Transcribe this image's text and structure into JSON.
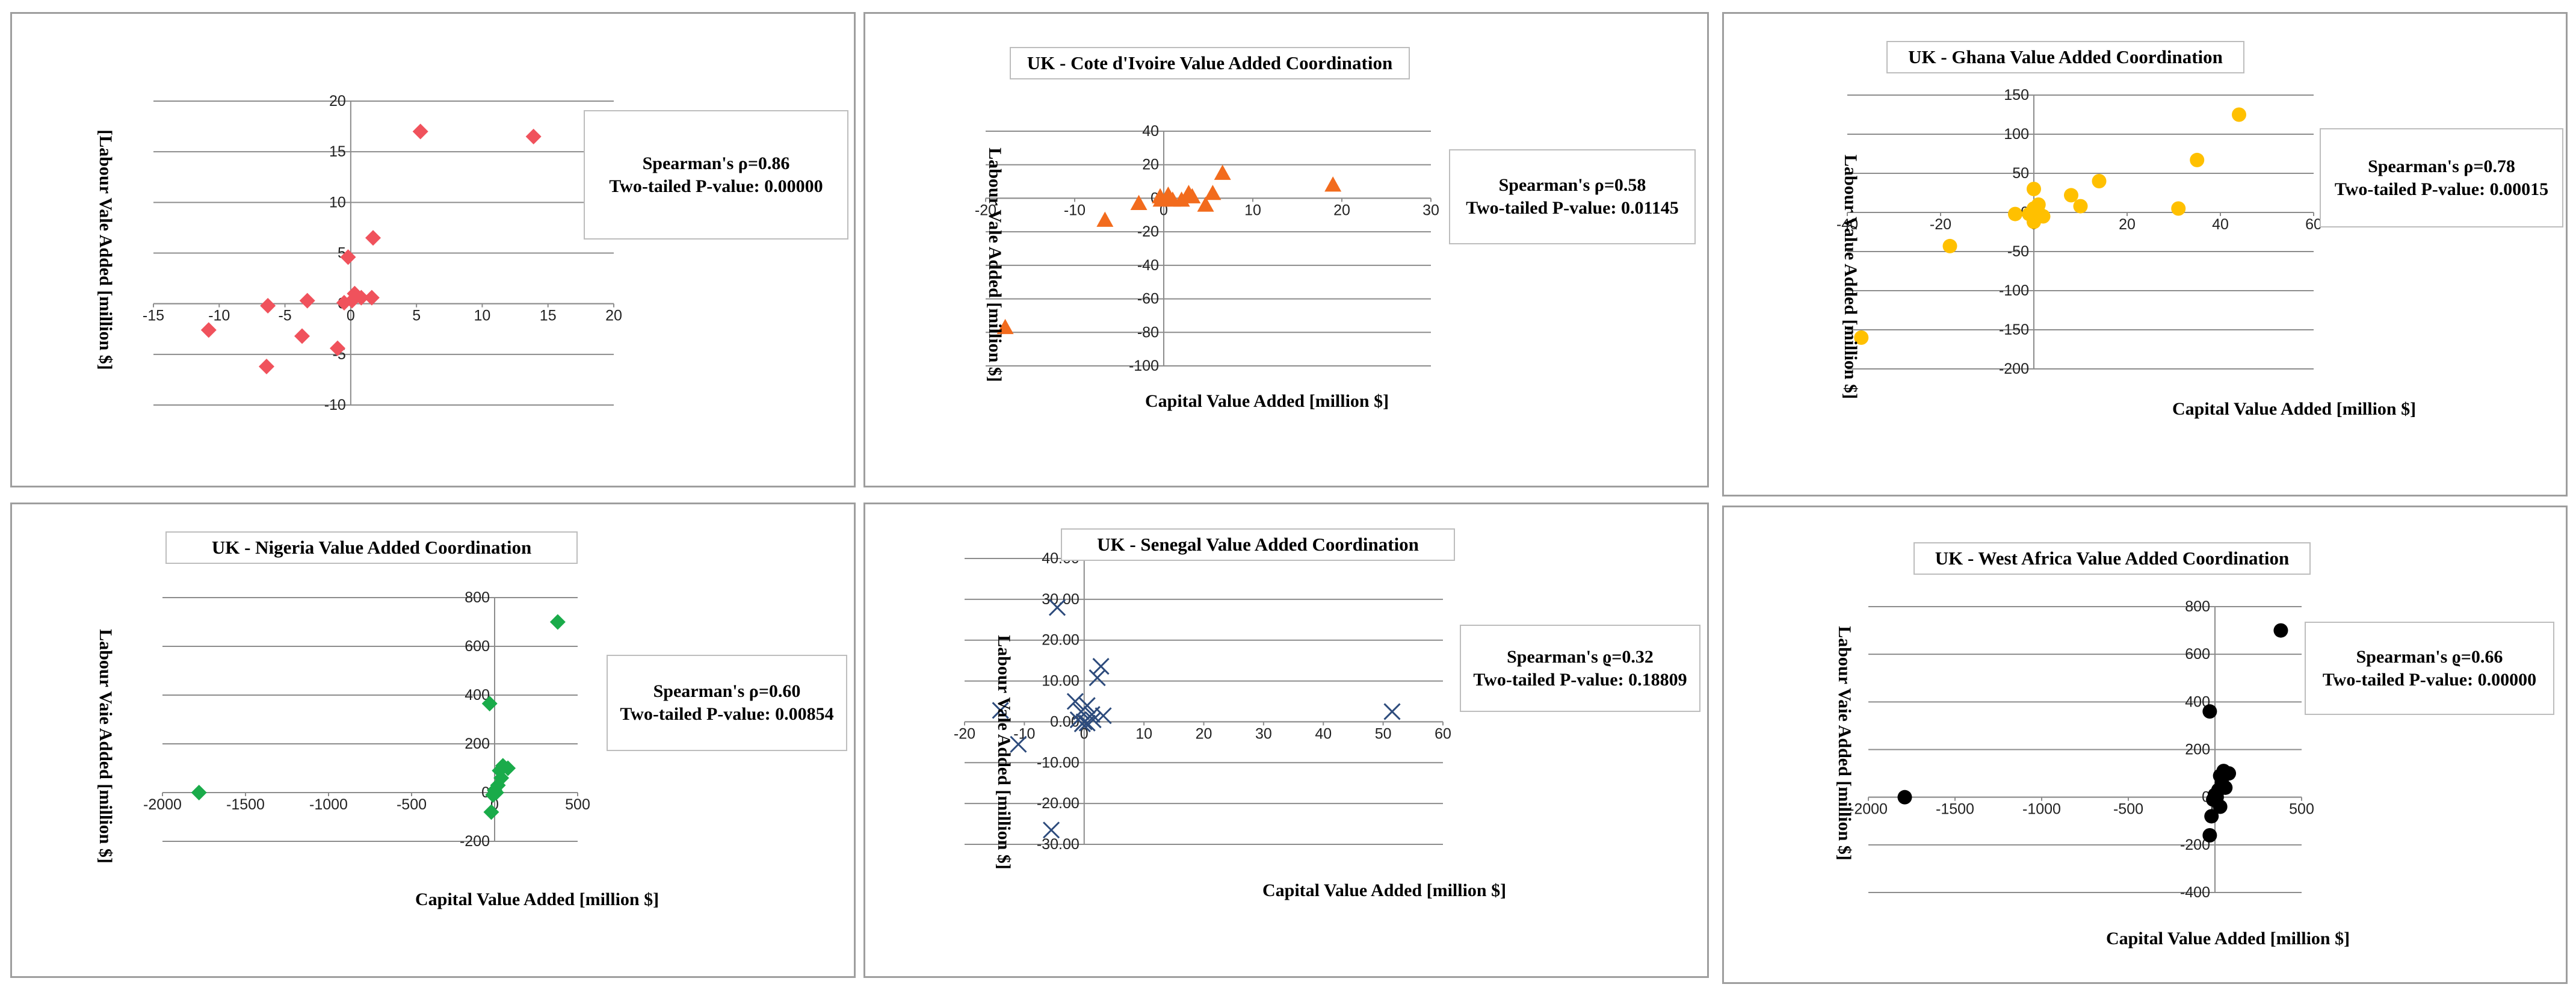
{
  "chart_data": [
    {
      "type": "scatter",
      "title": "",
      "xlabel": "",
      "ylabel": "[Labour Vale Added [million $]",
      "xlim": [
        -15,
        20
      ],
      "ylim": [
        -10,
        20
      ],
      "xticks": [
        -15,
        -10,
        -5,
        0,
        5,
        10,
        15,
        20
      ],
      "yticks": [
        -10,
        -5,
        0,
        5,
        10,
        15,
        20
      ],
      "xtick_labels": [
        "-15",
        "-10",
        "-5",
        "0",
        "5",
        "10",
        "15",
        "20"
      ],
      "ytick_labels": [
        "-10",
        "-5",
        "0",
        "5",
        "10",
        "15",
        "20"
      ],
      "marker": "diamond",
      "color": "#f0525c",
      "stats": {
        "spearman": "Spearman's ρ=0.86",
        "pvalue": "Two-tailed P-value:  0.00000"
      },
      "points": [
        [
          5.3,
          17.0
        ],
        [
          13.9,
          16.5
        ],
        [
          1.7,
          6.5
        ],
        [
          -0.2,
          4.6
        ],
        [
          0.3,
          1.0
        ],
        [
          0.8,
          0.6
        ],
        [
          1.6,
          0.6
        ],
        [
          -0.5,
          0.1
        ],
        [
          0.1,
          0.3
        ],
        [
          -3.3,
          0.3
        ],
        [
          -6.3,
          -0.2
        ],
        [
          -10.8,
          -2.6
        ],
        [
          -3.7,
          -3.2
        ],
        [
          -1.0,
          -4.4
        ],
        [
          -6.4,
          -6.2
        ]
      ]
    },
    {
      "type": "scatter",
      "title": "UK - Cote d'Ivoire Value Added Coordination",
      "xlabel": "Capital Value Added [million $]",
      "ylabel": "Labour Vale Added [million $]",
      "xlim": [
        -20,
        30
      ],
      "ylim": [
        -100,
        40
      ],
      "xticks": [
        -20,
        -10,
        0,
        10,
        20,
        30
      ],
      "yticks": [
        -100,
        -80,
        -60,
        -40,
        -20,
        0,
        20,
        40
      ],
      "xtick_labels": [
        "-20",
        "-10",
        "0",
        "10",
        "20",
        "30"
      ],
      "ytick_labels": [
        "-100",
        "-80",
        "-60",
        "-40",
        "-20",
        "0",
        "20",
        "40"
      ],
      "marker": "triangle",
      "color": "#f26b1d",
      "stats": {
        "spearman": "Spearman's ρ=0.58",
        "pvalue": "Two-tailed P-value:  0.01145"
      },
      "points": [
        [
          -17.8,
          -77
        ],
        [
          -6.6,
          -13
        ],
        [
          -2.8,
          -3
        ],
        [
          -0.4,
          1
        ],
        [
          0.3,
          0
        ],
        [
          1.0,
          -1
        ],
        [
          2.0,
          -1
        ],
        [
          3.2,
          1
        ],
        [
          0.5,
          2
        ],
        [
          -0.3,
          -1
        ],
        [
          2.8,
          3
        ],
        [
          5.5,
          3
        ],
        [
          6.6,
          15
        ],
        [
          4.7,
          -4
        ],
        [
          19.0,
          8
        ]
      ]
    },
    {
      "type": "scatter",
      "title": "UK - Ghana Value Added Coordination",
      "xlabel": "Capital Value Added [million $]",
      "ylabel": "Labour Value Added [million $]",
      "xlim": [
        -40,
        60
      ],
      "ylim": [
        -200,
        150
      ],
      "xticks": [
        -40,
        -20,
        0,
        20,
        40,
        60
      ],
      "yticks": [
        -200,
        -150,
        -100,
        -50,
        0,
        50,
        100,
        150
      ],
      "xtick_labels": [
        "-40",
        "-20",
        "0",
        "20",
        "40",
        "60"
      ],
      "ytick_labels": [
        "-200",
        "-150",
        "-100",
        "-50",
        "0",
        "50",
        "100",
        "150"
      ],
      "marker": "circle",
      "color": "#ffc000",
      "stats": {
        "spearman": "Spearman's ρ=0.78",
        "pvalue": "Two-tailed P-value:  0.00015"
      },
      "points": [
        [
          44,
          125
        ],
        [
          35,
          67
        ],
        [
          14,
          40
        ],
        [
          8,
          22
        ],
        [
          10,
          8
        ],
        [
          31,
          5
        ],
        [
          0,
          30
        ],
        [
          0,
          5
        ],
        [
          1,
          0
        ],
        [
          2,
          -5
        ],
        [
          0,
          -12
        ],
        [
          -1,
          -2
        ],
        [
          -4,
          -2
        ],
        [
          1,
          10
        ],
        [
          -18,
          -43
        ],
        [
          -37,
          -160
        ]
      ]
    },
    {
      "type": "scatter",
      "title": "UK - Nigeria Value Added Coordination",
      "xlabel": "Capital Value Added [million $]",
      "ylabel": "Labour Vaie Added [million $]",
      "xlim": [
        -2000,
        500
      ],
      "ylim": [
        -200,
        800
      ],
      "xticks": [
        -2000,
        -1500,
        -1000,
        -500,
        0,
        500
      ],
      "yticks": [
        -200,
        0,
        200,
        400,
        600,
        800
      ],
      "xtick_labels": [
        "-2000",
        "-1500",
        "-1000",
        "-500",
        "0",
        "500"
      ],
      "ytick_labels": [
        "-200",
        "0",
        "200",
        "400",
        "600",
        "800"
      ],
      "marker": "diamond",
      "color": "#1aab4a",
      "stats": {
        "spearman": "Spearman's ρ=0.60",
        "pvalue": "Two-tailed P-value:  0.00854"
      },
      "points": [
        [
          380,
          700
        ],
        [
          -30,
          365
        ],
        [
          50,
          110
        ],
        [
          80,
          100
        ],
        [
          30,
          90
        ],
        [
          40,
          60
        ],
        [
          20,
          30
        ],
        [
          0,
          10
        ],
        [
          10,
          0
        ],
        [
          -10,
          -10
        ],
        [
          -20,
          -80
        ],
        [
          -1780,
          0
        ]
      ]
    },
    {
      "type": "scatter",
      "title": "UK - Senegal Value Added Coordination",
      "xlabel": "Capital Value Added [million $]",
      "ylabel": "Labour Vale Added [million $]",
      "xlim": [
        -20,
        60
      ],
      "ylim": [
        -30,
        40
      ],
      "xticks": [
        -20,
        -10,
        0,
        10,
        20,
        30,
        40,
        50,
        60
      ],
      "yticks": [
        -30,
        -20,
        -10,
        0,
        10,
        20,
        30,
        40
      ],
      "xtick_labels": [
        "-20",
        "-10",
        "0",
        "10",
        "20",
        "30",
        "40",
        "50",
        "60"
      ],
      "ytick_labels": [
        "-30.00",
        "-20.00",
        "-10.00",
        "0.00",
        "10.00",
        "20.00",
        "30.00",
        "40.00"
      ],
      "marker": "x",
      "color": "#2d4b7c",
      "stats": {
        "spearman": "Spearman's ϱ=0.32",
        "pvalue": "Two-tailed P-value:  0.18809"
      },
      "points": [
        [
          -4.5,
          28
        ],
        [
          2.8,
          13.6
        ],
        [
          2.2,
          10.8
        ],
        [
          -14,
          2.8
        ],
        [
          -1.5,
          5
        ],
        [
          -0.5,
          2.5
        ],
        [
          0.5,
          4
        ],
        [
          1.3,
          1.8
        ],
        [
          -1,
          0.5
        ],
        [
          0,
          0
        ],
        [
          -0.3,
          -0.5
        ],
        [
          0.5,
          -0.3
        ],
        [
          1.5,
          0.5
        ],
        [
          3.2,
          1.5
        ],
        [
          51.5,
          2.5
        ],
        [
          -11,
          -5.5
        ],
        [
          -5.5,
          -26.5
        ]
      ]
    },
    {
      "type": "scatter",
      "title": "UK - West Africa Value Added Coordination",
      "xlabel": "Capital Value Added [million $]",
      "ylabel": "Labour Vaie Added [million $]",
      "xlim": [
        -2000,
        500
      ],
      "ylim": [
        -400,
        800
      ],
      "xticks": [
        -2000,
        -1500,
        -1000,
        -500,
        0,
        500
      ],
      "yticks": [
        -400,
        -200,
        0,
        200,
        400,
        600,
        800
      ],
      "xtick_labels": [
        "-2000",
        "-1500",
        "-1000",
        "-500",
        "0",
        "500"
      ],
      "ytick_labels": [
        "-400",
        "-200",
        "0",
        "200",
        "400",
        "600",
        "800"
      ],
      "marker": "circle",
      "color": "#000000",
      "stats": {
        "spearman": "Spearman's ϱ=0.66",
        "pvalue": "Two-tailed P-value:  0.00000"
      },
      "points": [
        [
          380,
          700
        ],
        [
          -30,
          360
        ],
        [
          50,
          110
        ],
        [
          80,
          100
        ],
        [
          30,
          90
        ],
        [
          40,
          60
        ],
        [
          20,
          30
        ],
        [
          0,
          10
        ],
        [
          10,
          0
        ],
        [
          -10,
          -10
        ],
        [
          -20,
          -80
        ],
        [
          -30,
          -160
        ],
        [
          60,
          40
        ],
        [
          30,
          -40
        ],
        [
          -1790,
          0
        ]
      ]
    }
  ]
}
